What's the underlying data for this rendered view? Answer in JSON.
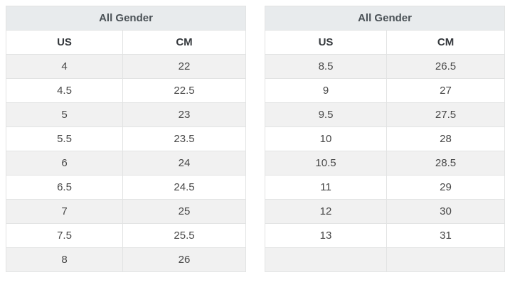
{
  "colors": {
    "title_band_bg": "#e8ebed",
    "stripe_bg": "#f1f1f1",
    "border": "#e2e3e3",
    "title_text": "#4a5156",
    "header_text": "#35393d",
    "cell_text": "#474747",
    "page_bg": "#ffffff"
  },
  "tables": [
    {
      "title": "All Gender",
      "columns": [
        "US",
        "CM"
      ],
      "rows": [
        [
          "4",
          "22"
        ],
        [
          "4.5",
          "22.5"
        ],
        [
          "5",
          "23"
        ],
        [
          "5.5",
          "23.5"
        ],
        [
          "6",
          "24"
        ],
        [
          "6.5",
          "24.5"
        ],
        [
          "7",
          "25"
        ],
        [
          "7.5",
          "25.5"
        ],
        [
          "8",
          "26"
        ]
      ]
    },
    {
      "title": "All Gender",
      "columns": [
        "US",
        "CM"
      ],
      "rows": [
        [
          "8.5",
          "26.5"
        ],
        [
          "9",
          "27"
        ],
        [
          "9.5",
          "27.5"
        ],
        [
          "10",
          "28"
        ],
        [
          "10.5",
          "28.5"
        ],
        [
          "11",
          "29"
        ],
        [
          "12",
          "30"
        ],
        [
          "13",
          "31"
        ],
        [
          "",
          ""
        ]
      ]
    }
  ]
}
